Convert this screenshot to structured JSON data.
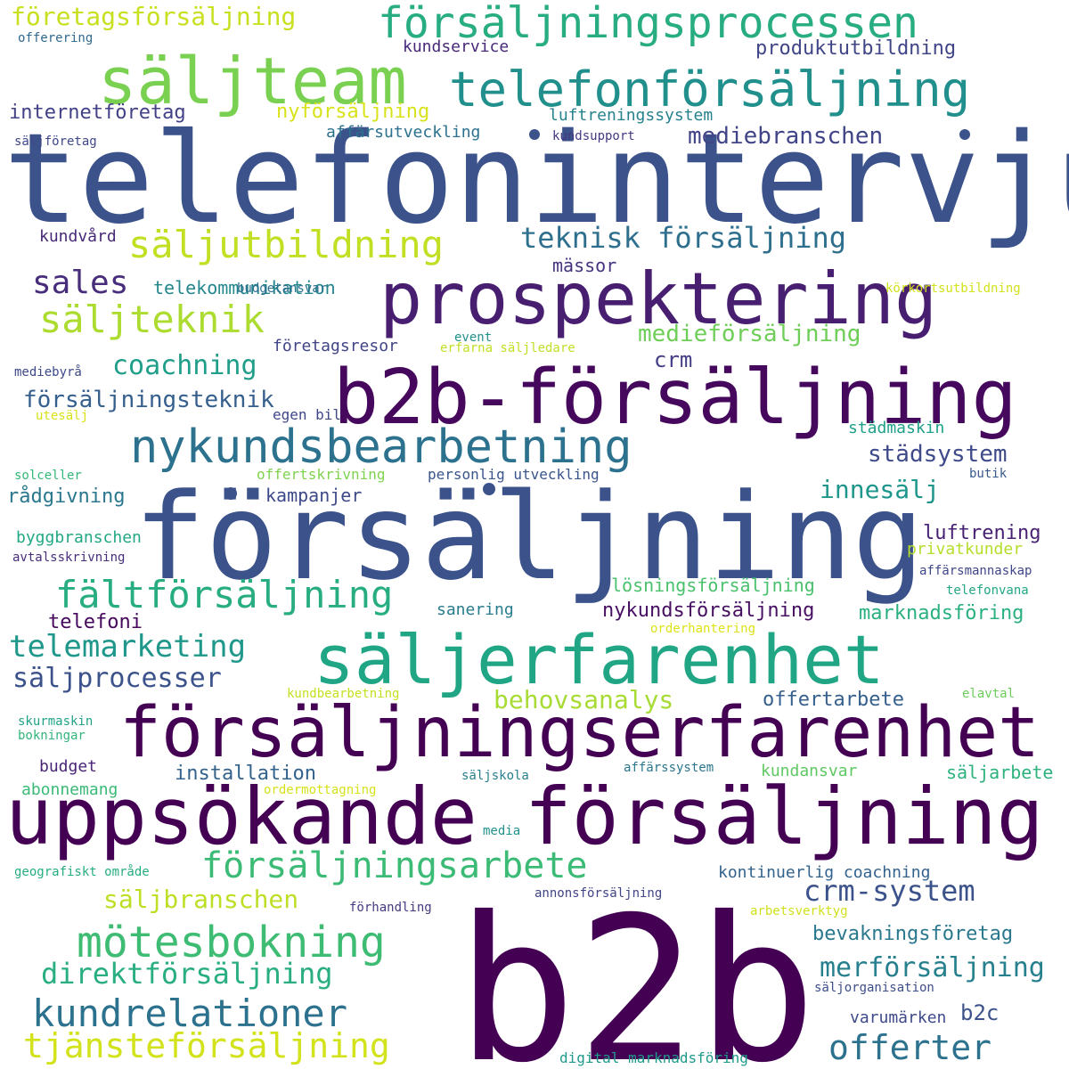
{
  "words": [
    {
      "text": "b2b",
      "color": "#440154"
    },
    {
      "text": "telefonintervju",
      "color": "#3b528b"
    },
    {
      "text": "försäljning",
      "color": "#3b528b"
    },
    {
      "text": "b2b-försäljning",
      "color": "#46085c"
    },
    {
      "text": "uppsökande försäljning",
      "color": "#440154"
    },
    {
      "text": "försäljningserfarenhet",
      "color": "#440154"
    },
    {
      "text": "prospektering",
      "color": "#481f70"
    },
    {
      "text": "säljerfarenhet",
      "color": "#21a685"
    },
    {
      "text": "säljteam",
      "color": "#7ad151"
    },
    {
      "text": "nykundsbearbetning",
      "color": "#2c728e"
    },
    {
      "text": "telefonförsäljning",
      "color": "#21908d"
    },
    {
      "text": "försäljningsprocessen",
      "color": "#27ad81"
    },
    {
      "text": "mötesbokning",
      "color": "#3fbc73"
    },
    {
      "text": "säljutbildning",
      "color": "#c2df23"
    },
    {
      "text": "säljteknik",
      "color": "#addc30"
    },
    {
      "text": "fältförsäljning",
      "color": "#27ad81"
    },
    {
      "text": "försäljningsarbete",
      "color": "#3bbb75"
    },
    {
      "text": "kundrelationer",
      "color": "#2c728e"
    },
    {
      "text": "tjänsteförsäljning",
      "color": "#d2e21b"
    },
    {
      "text": "offerter",
      "color": "#2c728e"
    },
    {
      "text": "telemarketing",
      "color": "#1f988b"
    },
    {
      "text": "direktförsäljning",
      "color": "#28ae80"
    },
    {
      "text": "teknisk försäljning",
      "color": "#2e6f8e"
    },
    {
      "text": "sales",
      "color": "#472d7b"
    },
    {
      "text": "crm-system",
      "color": "#3b528b"
    },
    {
      "text": "merförsäljning",
      "color": "#27808e"
    },
    {
      "text": "säljprocesser",
      "color": "#3b528b"
    },
    {
      "text": "coachning",
      "color": "#1f9e89"
    },
    {
      "text": "företagsförsäljning",
      "color": "#c8e020"
    },
    {
      "text": "säljbranschen",
      "color": "#bddf26"
    },
    {
      "text": "behovsanalys",
      "color": "#a8db34"
    },
    {
      "text": "försäljningsteknik",
      "color": "#355f8d"
    },
    {
      "text": "innesälj",
      "color": "#1f968b"
    },
    {
      "text": "mediebranschen",
      "color": "#414487"
    },
    {
      "text": "medieförsäljning",
      "color": "#6ece58"
    },
    {
      "text": "städsystem",
      "color": "#3e4a89"
    },
    {
      "text": "bevakningsföretag",
      "color": "#2a788e"
    },
    {
      "text": "b2c",
      "color": "#3b528b"
    },
    {
      "text": "installation",
      "color": "#33638d"
    },
    {
      "text": "luftrening",
      "color": "#482173"
    },
    {
      "text": "nykundsförsäljning",
      "color": "#471063"
    },
    {
      "text": "marknadsföring",
      "color": "#2ab07f"
    },
    {
      "text": "offertarbete",
      "color": "#355f8d"
    },
    {
      "text": "produktutbildning",
      "color": "#404688"
    },
    {
      "text": "internetföretag",
      "color": "#424086"
    },
    {
      "text": "nyförsäljning",
      "color": "#d8e219"
    },
    {
      "text": "telekommunikation",
      "color": "#24878e"
    },
    {
      "text": "crm",
      "color": "#433e85"
    },
    {
      "text": "kampanjer",
      "color": "#3e4989"
    },
    {
      "text": "rådgivning",
      "color": "#2a778e"
    },
    {
      "text": "mässor",
      "color": "#46327e"
    },
    {
      "text": "telefoni",
      "color": "#46085c"
    },
    {
      "text": "budget",
      "color": "#482576"
    },
    {
      "text": "varumärken",
      "color": "#3e4a89"
    },
    {
      "text": "kundansvar",
      "color": "#5ec962"
    },
    {
      "text": "säljarbete",
      "color": "#2db27d"
    },
    {
      "text": "kundvård",
      "color": "#482878"
    },
    {
      "text": "byggbranschen",
      "color": "#22a884"
    },
    {
      "text": "lösningsförsäljning",
      "color": "#4ac16d"
    },
    {
      "text": "abonnemang",
      "color": "#3aba76"
    },
    {
      "text": "affärsutveckling",
      "color": "#2c718e"
    },
    {
      "text": "luftreningssystem",
      "color": "#26828e"
    },
    {
      "text": "kundservice",
      "color": "#482979"
    },
    {
      "text": "företagsresor",
      "color": "#414487"
    },
    {
      "text": "sanering",
      "color": "#287c8e"
    },
    {
      "text": "privatkunder",
      "color": "#b5de2b"
    },
    {
      "text": "kontinuerlig coachning",
      "color": "#33638d"
    },
    {
      "text": "städmaskin",
      "color": "#1fa188"
    },
    {
      "text": "erfarna säljledare",
      "color": "#c0df25"
    },
    {
      "text": "event",
      "color": "#21918c"
    },
    {
      "text": "egen bil",
      "color": "#404588"
    },
    {
      "text": "personlig utveckling",
      "color": "#3a548c"
    },
    {
      "text": "offertskrivning",
      "color": "#7fd34e"
    },
    {
      "text": "orderhantering",
      "color": "#dde318"
    },
    {
      "text": "kundbearbetning",
      "color": "#c5e021"
    },
    {
      "text": "affärssystem",
      "color": "#2a768e"
    },
    {
      "text": "säljskola",
      "color": "#277f8e"
    },
    {
      "text": "ordermottagning",
      "color": "#d5e21a"
    },
    {
      "text": "media",
      "color": "#20928c"
    },
    {
      "text": "geografiskt område",
      "color": "#27ad81"
    },
    {
      "text": "annonsförsäljning",
      "color": "#414487"
    },
    {
      "text": "förhandling",
      "color": "#443a83"
    },
    {
      "text": "arbetsverktyg",
      "color": "#d0e11c"
    },
    {
      "text": "säljorganisation",
      "color": "#3d4e8a"
    },
    {
      "text": "digital marknadsföring",
      "color": "#1f9a8a"
    },
    {
      "text": "affärsmannaskap",
      "color": "#3f4788"
    },
    {
      "text": "telefonvana",
      "color": "#22a785"
    },
    {
      "text": "elavtal",
      "color": "#6ccd5a"
    },
    {
      "text": "butik",
      "color": "#38588c"
    },
    {
      "text": "solceller",
      "color": "#35b779"
    },
    {
      "text": "utesälj",
      "color": "#d8e219"
    },
    {
      "text": "mediebyrå",
      "color": "#3e4989"
    },
    {
      "text": "avtalsskrivning",
      "color": "#472d7b"
    },
    {
      "text": "skurmaskin",
      "color": "#20a386"
    },
    {
      "text": "bokningar",
      "color": "#31b57b"
    },
    {
      "text": "säljföretag",
      "color": "#3f4889"
    },
    {
      "text": "offerering",
      "color": "#30698e"
    },
    {
      "text": "kundsupport",
      "color": "#453882"
    },
    {
      "text": "budgetansvar",
      "color": "#2e6f8e"
    },
    {
      "text": "körkortsutbildning",
      "color": "#d2e21b"
    }
  ],
  "dot_color": "#3b528b"
}
